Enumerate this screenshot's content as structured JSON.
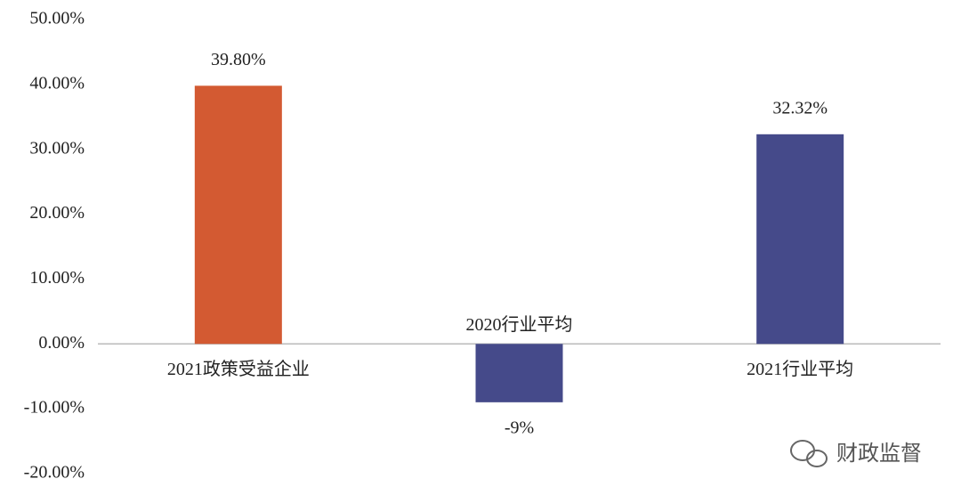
{
  "chart_data": {
    "type": "bar",
    "categories": [
      "2021政策受益企业",
      "2020行业平均",
      "2021行业平均"
    ],
    "values": [
      39.8,
      -9,
      32.32
    ],
    "value_labels": [
      "39.80%",
      "-9%",
      "32.32%"
    ],
    "colors": [
      "#d35a32",
      "#454a8a",
      "#454a8a"
    ],
    "ylim": [
      -20,
      50
    ],
    "yticks": [
      {
        "value": -20,
        "label": "-20.00%"
      },
      {
        "value": -10,
        "label": "-10.00%"
      },
      {
        "value": 0,
        "label": "0.00%"
      },
      {
        "value": 10,
        "label": "10.00%"
      },
      {
        "value": 20,
        "label": "20.00%"
      },
      {
        "value": 30,
        "label": "30.00%"
      },
      {
        "value": 40,
        "label": "40.00%"
      },
      {
        "value": 50,
        "label": "50.00%"
      }
    ],
    "watermark": "财政监督"
  }
}
